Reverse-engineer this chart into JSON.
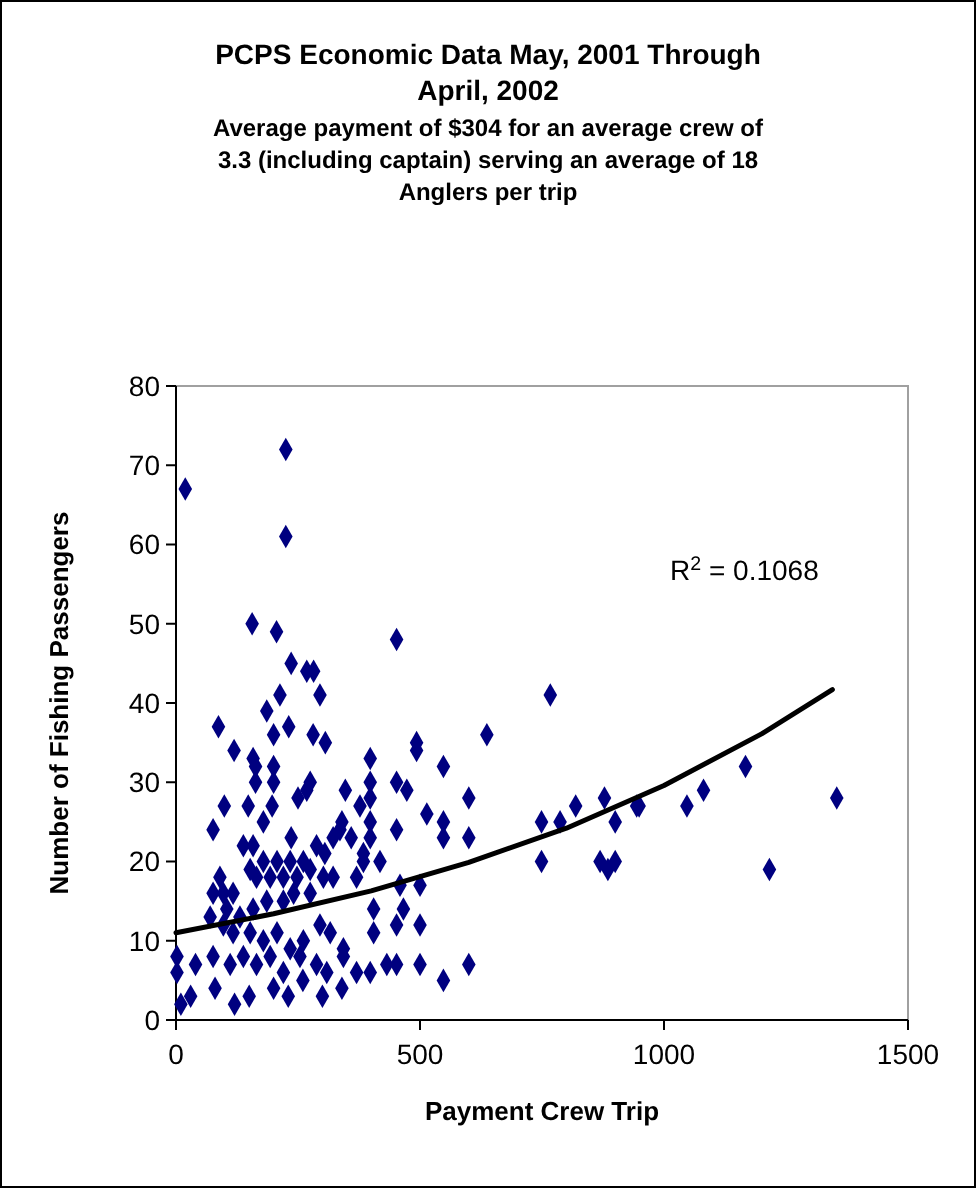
{
  "chart_data": {
    "type": "scatter",
    "title": "PCPS Economic Data May, 2001 Through April, 2002",
    "subtitle": "Average payment of $304 for an average crew of 3.3 (including captain) serving an average of 18 Anglers per trip",
    "xlabel": "Payment Crew Trip",
    "ylabel": "Number of Fishing Passengers",
    "annotations": [
      "R$^{2}$ = 0.1068"
    ],
    "xlim": [
      0,
      1500
    ],
    "xticks": [
      0,
      500,
      1000,
      1500
    ],
    "ylim": [
      0,
      80
    ],
    "yticks": [
      0,
      10,
      20,
      30,
      40,
      50,
      60,
      70,
      80
    ],
    "grid": false,
    "marker": "diamond",
    "series": [
      {
        "color": "#000080",
        "x": [
          19,
          225,
          225,
          156,
          206,
          236,
          268,
          282,
          87,
          119,
          158,
          163,
          200,
          186,
          213,
          200,
          231,
          281,
          306,
          295,
          163,
          200,
          275,
          268,
          250,
          99,
          148,
          197,
          347,
          377,
          76,
          179,
          236,
          340,
          336,
          322,
          288,
          305,
          359,
          138,
          158,
          90,
          76,
          97,
          117,
          152,
          179,
          207,
          234,
          261,
          165,
          193,
          220,
          248,
          275,
          302,
          322,
          370,
          384,
          70,
          104,
          131,
          158,
          186,
          220,
          241,
          275,
          97,
          117,
          152,
          179,
          207,
          234,
          261,
          295,
          316,
          343,
          2,
          2,
          40,
          76,
          111,
          138,
          165,
          193,
          220,
          254,
          288,
          309,
          343,
          370,
          10,
          30,
          80,
          120,
          150,
          200,
          230,
          260,
          300,
          340,
          452,
          767,
          637,
          493,
          493,
          398,
          548,
          398,
          452,
          473,
          398,
          600,
          398,
          514,
          548,
          452,
          398,
          548,
          600,
          384,
          418,
          749,
          787,
          819,
          878,
          900,
          944,
          749,
          869,
          885,
          900,
          459,
          500,
          405,
          466,
          405,
          452,
          500,
          398,
          432,
          452,
          500,
          600,
          548,
          1167,
          1081,
          1047,
          949,
          1216,
          1354
        ],
        "values": [
          67,
          72,
          61,
          50,
          49,
          45,
          44,
          44,
          37,
          34,
          33,
          32,
          32,
          39,
          41,
          36,
          37,
          36,
          35,
          41,
          30,
          30,
          30,
          29,
          28,
          27,
          27,
          27,
          29,
          27,
          24,
          25,
          23,
          25,
          24,
          23,
          22,
          21,
          23,
          22,
          22,
          18,
          16,
          16,
          16,
          19,
          20,
          20,
          20,
          20,
          18,
          18,
          18,
          18,
          19,
          18,
          18,
          18,
          20,
          13,
          14,
          13,
          14,
          15,
          15,
          16,
          16,
          12,
          11,
          11,
          10,
          11,
          9,
          10,
          12,
          11,
          9,
          8,
          6,
          7,
          8,
          7,
          8,
          7,
          8,
          6,
          8,
          7,
          6,
          8,
          6,
          2,
          3,
          4,
          2,
          3,
          4,
          3,
          5,
          3,
          4,
          48,
          41,
          36,
          35,
          34,
          33,
          32,
          30,
          30,
          29,
          28,
          28,
          25,
          26,
          25,
          24,
          23,
          23,
          23,
          21,
          20,
          25,
          25,
          27,
          28,
          25,
          27,
          20,
          20,
          19,
          20,
          17,
          17,
          14,
          14,
          11,
          12,
          12,
          6,
          7,
          7,
          7,
          7,
          5,
          32,
          29,
          27,
          27,
          19,
          28
        ]
      },
      {
        "type": "line",
        "color": "#000000",
        "marker": "none",
        "x": [
          0,
          200,
          400,
          600,
          800,
          1000,
          1200,
          1345
        ],
        "values": [
          11,
          13.4,
          16.3,
          19.9,
          24.2,
          29.6,
          36.1,
          41.7
        ]
      }
    ]
  }
}
